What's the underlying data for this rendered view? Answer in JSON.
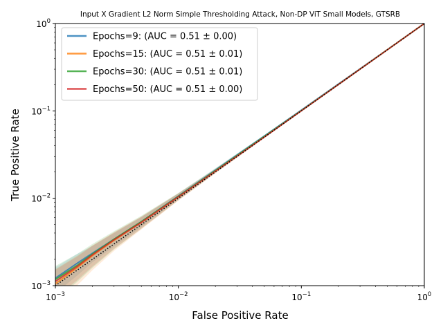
{
  "chart_data": {
    "type": "line",
    "title": "Input X Gradient L2 Norm Simple Thresholding Attack, Non-DP ViT Small Models, GTSRB",
    "xlabel": "False Positive Rate",
    "ylabel": "True Positive Rate",
    "xscale": "log",
    "yscale": "log",
    "xlim": [
      0.001,
      1
    ],
    "ylim": [
      0.001,
      1
    ],
    "x_ticks": [
      {
        "value": 0.001,
        "base": "10",
        "exp": "−3"
      },
      {
        "value": 0.01,
        "base": "10",
        "exp": "−2"
      },
      {
        "value": 0.1,
        "base": "10",
        "exp": "−1"
      },
      {
        "value": 1,
        "base": "10",
        "exp": "0"
      }
    ],
    "y_ticks": [
      {
        "value": 0.001,
        "base": "10",
        "exp": "−3"
      },
      {
        "value": 0.01,
        "base": "10",
        "exp": "−2"
      },
      {
        "value": 0.1,
        "base": "10",
        "exp": "−1"
      },
      {
        "value": 1,
        "base": "10",
        "exp": "0"
      }
    ],
    "grid": false,
    "legend_position": "top-left",
    "series": [
      {
        "name": "Epochs=9: (AUC = 0.51 ± 0.00)",
        "color": "#1f77b4",
        "x": [
          0.001,
          0.0015,
          0.002,
          0.003,
          0.005,
          0.01,
          0.02,
          0.05,
          0.1,
          0.2,
          0.5,
          1
        ],
        "y": [
          0.00122,
          0.0018,
          0.00235,
          0.0034,
          0.0054,
          0.0106,
          0.021,
          0.0515,
          0.102,
          0.203,
          0.502,
          1
        ],
        "band": [
          0.0004,
          0.0005,
          0.0005,
          0.0006,
          0.0007,
          0.0008,
          0.001,
          0.0015,
          0.002,
          0.003,
          0.003,
          0
        ]
      },
      {
        "name": "Epochs=15: (AUC = 0.51 ± 0.01)",
        "color": "#ff7f0e",
        "x": [
          0.001,
          0.0015,
          0.002,
          0.003,
          0.005,
          0.01,
          0.02,
          0.05,
          0.1,
          0.2,
          0.5,
          1
        ],
        "y": [
          0.00105,
          0.0016,
          0.0022,
          0.0033,
          0.0053,
          0.0104,
          0.0205,
          0.0505,
          0.1005,
          0.2005,
          0.5005,
          1
        ],
        "band": [
          0.0005,
          0.0006,
          0.0007,
          0.0008,
          0.0009,
          0.001,
          0.0012,
          0.0018,
          0.0025,
          0.003,
          0.003,
          0
        ]
      },
      {
        "name": "Epochs=30: (AUC = 0.51 ± 0.01)",
        "color": "#2ca02c",
        "x": [
          0.001,
          0.0015,
          0.002,
          0.003,
          0.005,
          0.01,
          0.02,
          0.05,
          0.1,
          0.2,
          0.5,
          1
        ],
        "y": [
          0.00118,
          0.0017,
          0.0023,
          0.0034,
          0.0054,
          0.0105,
          0.0207,
          0.051,
          0.101,
          0.201,
          0.501,
          1
        ],
        "band": [
          0.0005,
          0.0006,
          0.0007,
          0.0008,
          0.0009,
          0.001,
          0.0012,
          0.0018,
          0.0025,
          0.003,
          0.003,
          0
        ]
      },
      {
        "name": "Epochs=50: (AUC = 0.51 ± 0.00)",
        "color": "#d62728",
        "x": [
          0.001,
          0.0015,
          0.002,
          0.003,
          0.005,
          0.01,
          0.02,
          0.05,
          0.1,
          0.2,
          0.5,
          1
        ],
        "y": [
          0.00112,
          0.00165,
          0.00225,
          0.00335,
          0.0053,
          0.0104,
          0.0204,
          0.0502,
          0.1002,
          0.2002,
          0.5002,
          1
        ],
        "band": [
          0.0004,
          0.0005,
          0.0006,
          0.0007,
          0.0008,
          0.0009,
          0.001,
          0.0015,
          0.002,
          0.003,
          0.003,
          0
        ]
      }
    ],
    "reference_line": {
      "x": [
        0.001,
        1
      ],
      "y": [
        0.001,
        1
      ],
      "color": "#000000",
      "style": "dotted"
    }
  }
}
